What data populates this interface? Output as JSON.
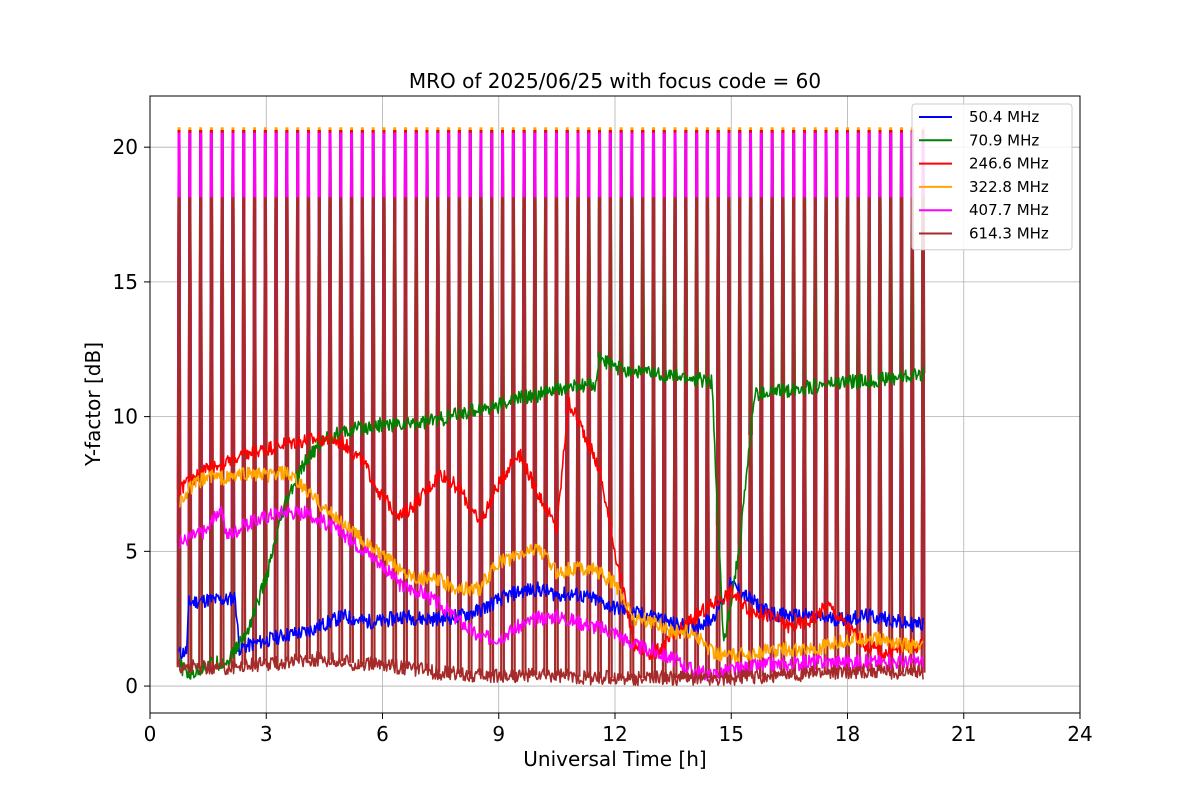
{
  "chart_data": {
    "type": "line",
    "title": "MRO of 2025/06/25 with focus code = 60",
    "xlabel": "Universal Time [h]",
    "ylabel": "Y-factor [dB]",
    "xlim": [
      0,
      24
    ],
    "ylim": [
      -1,
      21.9
    ],
    "xticks": [
      0,
      3,
      6,
      9,
      12,
      15,
      18,
      21,
      24
    ],
    "yticks": [
      0,
      5,
      10,
      15,
      20
    ],
    "grid": true,
    "legend_position": "top-right",
    "calibration_pulses": {
      "start_h": 0.75,
      "end_h": 19.95,
      "count": 70,
      "peak_db": {
        "50.4 MHz": 20.6,
        "70.9 MHz": 20.6,
        "246.6 MHz": 20.6,
        "322.8 MHz": 20.7,
        "407.7 MHz": 20.5,
        "614.3 MHz": 18.1
      }
    },
    "series": [
      {
        "name": "50.4 MHz",
        "color": "#0000ff",
        "x": [
          0.75,
          0.95,
          1.0,
          1.5,
          2.0,
          2.2,
          2.3,
          3.0,
          3.5,
          4.0,
          4.5,
          5.0,
          5.5,
          6.0,
          6.5,
          7.0,
          7.5,
          8.0,
          8.5,
          9.0,
          9.5,
          10.0,
          10.5,
          11.0,
          11.5,
          12.0,
          12.5,
          13.0,
          13.5,
          14.0,
          14.5,
          15.0,
          15.5,
          16.0,
          16.5,
          17.0,
          17.5,
          18.0,
          18.5,
          19.0,
          19.5,
          19.95
        ],
        "y": [
          1.2,
          1.3,
          3.1,
          3.2,
          3.2,
          3.3,
          1.4,
          1.7,
          1.9,
          2.0,
          2.3,
          2.6,
          2.4,
          2.4,
          2.6,
          2.5,
          2.5,
          2.6,
          2.8,
          3.2,
          3.5,
          3.6,
          3.4,
          3.4,
          3.2,
          2.9,
          2.7,
          2.6,
          2.3,
          2.2,
          2.5,
          3.8,
          3.2,
          2.7,
          2.6,
          2.6,
          2.5,
          2.5,
          2.6,
          2.5,
          2.3,
          2.3
        ]
      },
      {
        "name": "70.9 MHz",
        "color": "#008000",
        "x": [
          0.75,
          1.0,
          1.5,
          2.0,
          2.5,
          3.0,
          3.5,
          4.0,
          4.5,
          5.0,
          5.5,
          6.0,
          6.5,
          7.0,
          7.5,
          8.0,
          8.5,
          9.0,
          9.5,
          10.0,
          10.5,
          11.0,
          11.5,
          11.6,
          12.0,
          12.5,
          13.0,
          13.5,
          14.0,
          14.5,
          14.8,
          15.2,
          15.6,
          16.0,
          16.5,
          17.0,
          17.5,
          18.0,
          18.5,
          19.0,
          19.5,
          19.95
        ],
        "y": [
          0.8,
          0.4,
          0.8,
          0.9,
          2.0,
          4.0,
          6.8,
          8.3,
          9.2,
          9.4,
          9.6,
          9.7,
          9.7,
          9.8,
          9.9,
          10.1,
          10.3,
          10.4,
          10.7,
          10.8,
          11.0,
          11.1,
          11.2,
          12.2,
          11.8,
          11.7,
          11.6,
          11.5,
          11.4,
          11.3,
          1.5,
          5.0,
          10.8,
          10.9,
          11.0,
          11.1,
          11.2,
          11.3,
          11.3,
          11.4,
          11.5,
          11.6
        ]
      },
      {
        "name": "246.6 MHz",
        "color": "#ff0000",
        "x": [
          0.75,
          1.0,
          1.5,
          2.0,
          2.5,
          3.0,
          3.5,
          4.0,
          4.5,
          5.0,
          5.5,
          6.0,
          6.5,
          7.0,
          7.5,
          8.0,
          8.5,
          9.0,
          9.5,
          10.0,
          10.5,
          10.8,
          11.2,
          11.6,
          12.0,
          12.5,
          13.0,
          13.5,
          14.0,
          14.5,
          15.0,
          15.5,
          16.0,
          16.5,
          17.0,
          17.5,
          18.0,
          18.5,
          19.0,
          19.5,
          19.95
        ],
        "y": [
          7.3,
          7.6,
          8.1,
          8.3,
          8.6,
          8.8,
          9.0,
          9.1,
          9.2,
          9.0,
          8.3,
          7.0,
          6.3,
          7.0,
          7.9,
          7.3,
          6.0,
          7.5,
          8.7,
          7.2,
          5.8,
          10.6,
          9.4,
          8.0,
          5.0,
          1.5,
          1.2,
          1.8,
          2.5,
          3.0,
          3.5,
          2.8,
          2.6,
          2.2,
          2.4,
          3.0,
          2.2,
          1.5,
          1.2,
          1.5,
          1.5
        ]
      },
      {
        "name": "322.8 MHz",
        "color": "#ffa500",
        "x": [
          0.75,
          1.0,
          1.5,
          2.0,
          2.5,
          3.0,
          3.5,
          4.0,
          4.5,
          5.0,
          5.5,
          6.0,
          6.5,
          7.0,
          7.5,
          8.0,
          8.5,
          9.0,
          9.5,
          10.0,
          10.5,
          11.0,
          11.5,
          12.0,
          12.5,
          13.0,
          13.5,
          14.0,
          14.5,
          15.0,
          15.5,
          16.0,
          16.5,
          17.0,
          17.5,
          18.0,
          18.5,
          19.0,
          19.5,
          19.95
        ],
        "y": [
          6.8,
          7.3,
          7.8,
          7.7,
          7.9,
          7.8,
          7.9,
          7.3,
          6.6,
          6.0,
          5.4,
          4.8,
          4.3,
          4.0,
          3.9,
          3.6,
          3.6,
          4.6,
          4.8,
          5.2,
          4.2,
          4.4,
          4.3,
          3.8,
          2.5,
          2.4,
          2.0,
          2.0,
          1.3,
          1.1,
          1.2,
          1.3,
          1.4,
          1.3,
          1.5,
          1.7,
          1.8,
          1.7,
          1.5,
          1.4
        ]
      },
      {
        "name": "407.7 MHz",
        "color": "#ff00ff",
        "x": [
          0.75,
          1.0,
          1.5,
          1.8,
          2.0,
          2.5,
          3.0,
          3.5,
          4.0,
          4.5,
          5.0,
          5.5,
          6.0,
          6.5,
          7.0,
          7.5,
          8.0,
          8.5,
          9.0,
          9.5,
          10.0,
          10.5,
          11.0,
          11.5,
          12.0,
          12.5,
          13.0,
          13.5,
          14.0,
          14.5,
          15.0,
          15.5,
          16.0,
          16.5,
          17.0,
          17.5,
          18.0,
          18.5,
          19.0,
          19.5,
          19.95
        ],
        "y": [
          5.3,
          5.5,
          5.8,
          6.6,
          5.6,
          6.0,
          6.3,
          6.5,
          6.4,
          6.1,
          5.6,
          5.1,
          4.5,
          3.7,
          3.5,
          3.0,
          2.4,
          1.8,
          1.8,
          2.2,
          2.5,
          2.6,
          2.4,
          2.2,
          2.0,
          1.5,
          1.3,
          1.0,
          0.6,
          0.4,
          0.6,
          0.7,
          0.8,
          0.8,
          0.9,
          0.9,
          0.9,
          0.9,
          0.9,
          0.9,
          0.9
        ]
      },
      {
        "name": "614.3 MHz",
        "color": "#a52a2a",
        "x": [
          0.75,
          1.0,
          1.5,
          2.0,
          2.5,
          3.0,
          3.5,
          4.0,
          4.5,
          5.0,
          5.5,
          6.0,
          6.5,
          7.0,
          7.5,
          8.0,
          8.5,
          9.0,
          9.5,
          10.0,
          10.5,
          11.0,
          11.5,
          12.0,
          12.5,
          13.0,
          13.5,
          14.0,
          14.5,
          15.0,
          15.5,
          16.0,
          16.5,
          17.0,
          17.5,
          18.0,
          18.5,
          19.0,
          19.5,
          19.95
        ],
        "y": [
          0.7,
          0.7,
          0.7,
          0.7,
          0.8,
          0.8,
          0.9,
          1.0,
          1.0,
          0.9,
          0.8,
          0.8,
          0.7,
          0.6,
          0.5,
          0.45,
          0.4,
          0.4,
          0.4,
          0.4,
          0.4,
          0.35,
          0.3,
          0.3,
          0.3,
          0.3,
          0.3,
          0.3,
          0.3,
          0.3,
          0.35,
          0.35,
          0.4,
          0.45,
          0.5,
          0.55,
          0.55,
          0.55,
          0.5,
          0.5
        ]
      }
    ]
  }
}
